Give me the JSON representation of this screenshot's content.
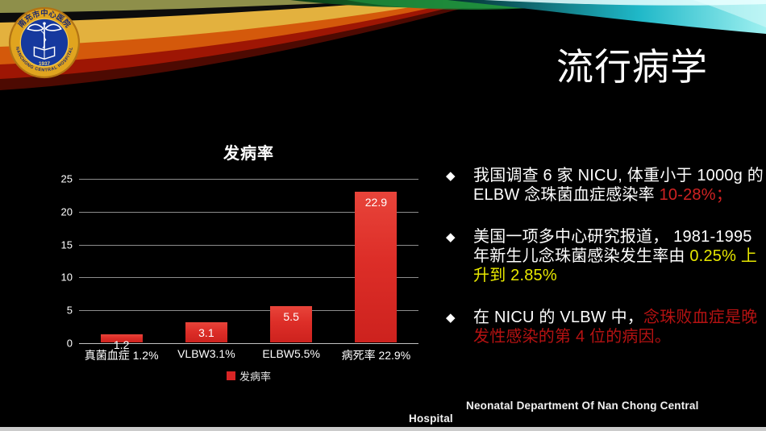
{
  "slide": {
    "title": "流行病学"
  },
  "logo": {
    "name_cn": "南充市中心医院",
    "name_en": "NANCHONG CENTRAL HOSPITAL",
    "year": "1937"
  },
  "bullet_marker": "◆",
  "colors": {
    "white": "#ffffff",
    "red": "#cf2222",
    "yellow": "#e8e800",
    "darkred": "#b51212",
    "bar_red": "#d92525"
  },
  "bullets": [
    {
      "runs": [
        {
          "t": "我国调查 6 家 NICU, 体重小于 1000g 的",
          "c": "white"
        },
        {
          "br": true
        },
        {
          "t": "ELBW 念珠菌血症感染率 ",
          "c": "white"
        },
        {
          "t": "10-28%；",
          "c": "red"
        }
      ]
    },
    {
      "runs": [
        {
          "t": "美国一项多中心研究报道， 1981-1995",
          "c": "white"
        },
        {
          "br": true
        },
        {
          "t": "年新生儿念珠菌感染发生率由 ",
          "c": "white"
        },
        {
          "t": "0.25% 上",
          "c": "yellow"
        },
        {
          "br": true
        },
        {
          "t": "升到 2.85%",
          "c": "yellow"
        }
      ]
    },
    {
      "runs": [
        {
          "t": "在 NICU 的 VLBW 中，",
          "c": "white"
        },
        {
          "t": "念珠败血症是晚",
          "c": "darkred"
        },
        {
          "br": true
        },
        {
          "t": "发性感染的第 4 位的病因。",
          "c": "darkred"
        }
      ]
    }
  ],
  "chart_data": {
    "type": "bar",
    "title": "发病率",
    "categories": [
      "真菌血症 1.2%",
      "VLBW3.1%",
      "ELBW5.5%",
      "病死率 22.9%"
    ],
    "values": [
      1.2,
      3.1,
      5.5,
      22.9
    ],
    "ylim": [
      0,
      25
    ],
    "yticks": [
      0,
      5,
      10,
      15,
      20,
      25
    ],
    "legend": [
      "发病率"
    ],
    "legend_position": "bottom",
    "grid": true,
    "bar_color": "#d92525",
    "xlabel": "",
    "ylabel": ""
  },
  "footer": {
    "line1": "Neonatal Department Of Nan Chong  Central",
    "line2": "Hospital"
  }
}
